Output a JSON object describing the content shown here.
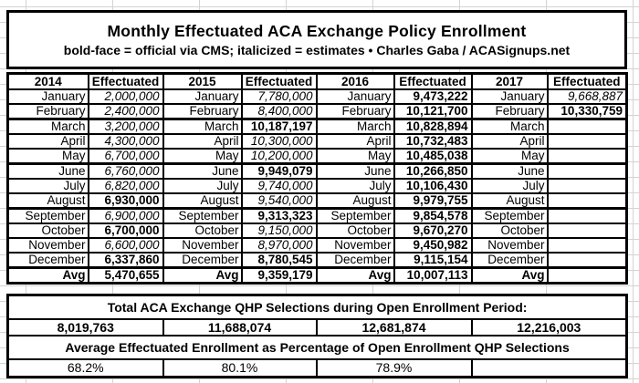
{
  "header": {
    "title": "Monthly Effectuated ACA Exchange Policy Enrollment",
    "subtitle": "bold-face = official via CMS; italicized = estimates  •  Charles Gaba / ACASignups.net"
  },
  "table": {
    "columns": [
      "2014",
      "Effectuated",
      "2015",
      "Effectuated",
      "2016",
      "Effectuated",
      "2017",
      "Effectuated"
    ],
    "rows": [
      {
        "label": "January",
        "sep": false,
        "values": [
          {
            "text": "2,000,000",
            "style": "estimate"
          },
          {
            "text": "7,780,000",
            "style": "estimate"
          },
          {
            "text": "9,473,222",
            "style": "official"
          },
          {
            "text": "9,668,887",
            "style": "estimate"
          }
        ]
      },
      {
        "label": "February",
        "sep": false,
        "values": [
          {
            "text": "2,400,000",
            "style": "estimate"
          },
          {
            "text": "8,400,000",
            "style": "estimate"
          },
          {
            "text": "10,121,700",
            "style": "official"
          },
          {
            "text": "10,330,759",
            "style": "official"
          }
        ]
      },
      {
        "label": "March",
        "sep": true,
        "values": [
          {
            "text": "3,200,000",
            "style": "estimate"
          },
          {
            "text": "10,187,197",
            "style": "official"
          },
          {
            "text": "10,828,894",
            "style": "official"
          },
          {
            "text": "",
            "style": "empty"
          }
        ]
      },
      {
        "label": "April",
        "sep": false,
        "values": [
          {
            "text": "4,300,000",
            "style": "estimate"
          },
          {
            "text": "10,300,000",
            "style": "estimate"
          },
          {
            "text": "10,732,483",
            "style": "official"
          },
          {
            "text": "",
            "style": "empty"
          }
        ]
      },
      {
        "label": "May",
        "sep": false,
        "values": [
          {
            "text": "6,700,000",
            "style": "estimate"
          },
          {
            "text": "10,200,000",
            "style": "estimate"
          },
          {
            "text": "10,485,038",
            "style": "official"
          },
          {
            "text": "",
            "style": "empty"
          }
        ]
      },
      {
        "label": "June",
        "sep": true,
        "values": [
          {
            "text": "6,760,000",
            "style": "estimate"
          },
          {
            "text": "9,949,079",
            "style": "official"
          },
          {
            "text": "10,266,850",
            "style": "official"
          },
          {
            "text": "",
            "style": "empty"
          }
        ]
      },
      {
        "label": "July",
        "sep": false,
        "values": [
          {
            "text": "6,820,000",
            "style": "estimate"
          },
          {
            "text": "9,740,000",
            "style": "estimate"
          },
          {
            "text": "10,106,430",
            "style": "official"
          },
          {
            "text": "",
            "style": "empty"
          }
        ]
      },
      {
        "label": "August",
        "sep": false,
        "values": [
          {
            "text": "6,930,000",
            "style": "official"
          },
          {
            "text": "9,540,000",
            "style": "estimate"
          },
          {
            "text": "9,979,755",
            "style": "official"
          },
          {
            "text": "",
            "style": "empty"
          }
        ]
      },
      {
        "label": "September",
        "sep": true,
        "values": [
          {
            "text": "6,900,000",
            "style": "estimate"
          },
          {
            "text": "9,313,323",
            "style": "official"
          },
          {
            "text": "9,854,578",
            "style": "official"
          },
          {
            "text": "",
            "style": "empty"
          }
        ]
      },
      {
        "label": "October",
        "sep": false,
        "values": [
          {
            "text": "6,700,000",
            "style": "official"
          },
          {
            "text": "9,150,000",
            "style": "estimate"
          },
          {
            "text": "9,670,270",
            "style": "official"
          },
          {
            "text": "",
            "style": "empty"
          }
        ]
      },
      {
        "label": "November",
        "sep": false,
        "values": [
          {
            "text": "6,600,000",
            "style": "estimate"
          },
          {
            "text": "8,970,000",
            "style": "estimate"
          },
          {
            "text": "9,450,982",
            "style": "official"
          },
          {
            "text": "",
            "style": "empty"
          }
        ]
      },
      {
        "label": "December",
        "sep": false,
        "values": [
          {
            "text": "6,337,860",
            "style": "official"
          },
          {
            "text": "8,780,545",
            "style": "official"
          },
          {
            "text": "9,115,154",
            "style": "official"
          },
          {
            "text": "",
            "style": "empty"
          }
        ]
      }
    ],
    "avg_row": {
      "label": "Avg",
      "values": [
        {
          "text": "5,470,655",
          "style": "official"
        },
        {
          "text": "9,359,179",
          "style": "official"
        },
        {
          "text": "10,007,113",
          "style": "official"
        },
        {
          "text": "",
          "style": "empty"
        }
      ]
    }
  },
  "totals": {
    "qhp_header": "Total ACA Exchange QHP Selections during Open Enrollment Period:",
    "qhp_values": [
      "8,019,763",
      "11,688,074",
      "12,681,874",
      "12,216,003"
    ],
    "pct_header": "Average Effectuated Enrollment as Percentage of Open Enrollment QHP Selections",
    "pct_values": [
      "68.2%",
      "80.1%",
      "78.9%",
      ""
    ]
  }
}
